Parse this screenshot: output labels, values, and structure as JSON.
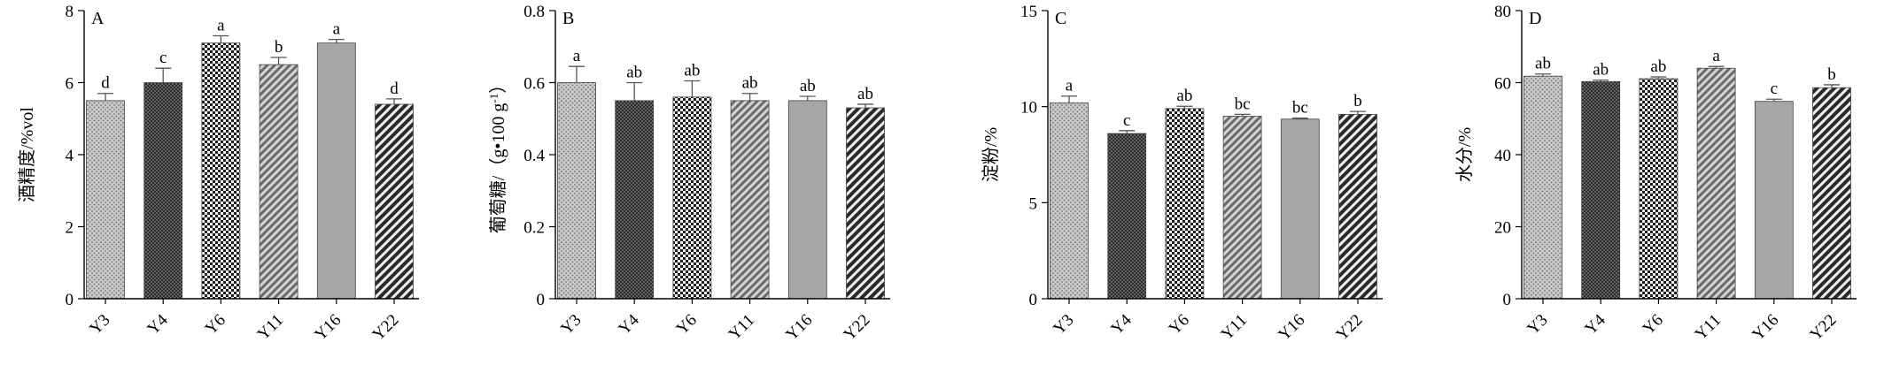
{
  "chart_data": [
    {
      "type": "bar",
      "panel": "A",
      "ylabel": "酒精度/%vol",
      "ylim": [
        0,
        8
      ],
      "yticks": [
        0,
        2,
        4,
        6,
        8
      ],
      "categories": [
        "Y3",
        "Y4",
        "Y6",
        "Y11",
        "Y16",
        "Y22"
      ],
      "values": [
        5.5,
        6.0,
        7.1,
        6.5,
        7.1,
        5.4
      ],
      "errors": [
        0.2,
        0.4,
        0.2,
        0.2,
        0.1,
        0.15
      ],
      "letters": [
        "d",
        "c",
        "a",
        "b",
        "a",
        "d"
      ]
    },
    {
      "type": "bar",
      "panel": "B",
      "ylabel": "葡萄糖/（g•100 g",
      "ylabel_sup": "-1",
      "ylabel_suffix": "）",
      "ylim": [
        0,
        0.8
      ],
      "yticks": [
        "0",
        "0.2",
        "0.4",
        "0.6",
        "0.8"
      ],
      "categories": [
        "Y3",
        "Y4",
        "Y6",
        "Y11",
        "Y16",
        "Y22"
      ],
      "values": [
        0.6,
        0.55,
        0.56,
        0.55,
        0.55,
        0.53
      ],
      "errors": [
        0.045,
        0.05,
        0.045,
        0.02,
        0.012,
        0.01
      ],
      "letters": [
        "a",
        "ab",
        "ab",
        "ab",
        "ab",
        "ab"
      ]
    },
    {
      "type": "bar",
      "panel": "C",
      "ylabel": "淀粉/%",
      "ylim": [
        0,
        15
      ],
      "yticks": [
        0,
        5,
        10,
        15
      ],
      "categories": [
        "Y3",
        "Y4",
        "Y6",
        "Y11",
        "Y16",
        "Y22"
      ],
      "values": [
        10.2,
        8.6,
        9.9,
        9.5,
        9.35,
        9.6
      ],
      "errors": [
        0.35,
        0.15,
        0.12,
        0.1,
        0.05,
        0.15
      ],
      "letters": [
        "a",
        "c",
        "ab",
        "bc",
        "bc",
        "b"
      ]
    },
    {
      "type": "bar",
      "panel": "D",
      "ylabel": "水分/%",
      "ylim": [
        0,
        80
      ],
      "yticks": [
        0,
        20,
        40,
        60,
        80
      ],
      "categories": [
        "Y3",
        "Y4",
        "Y6",
        "Y11",
        "Y16",
        "Y22"
      ],
      "values": [
        61.8,
        60.3,
        61.1,
        64.0,
        54.8,
        58.6
      ],
      "errors": [
        0.6,
        0.4,
        0.5,
        0.5,
        0.6,
        0.8
      ],
      "letters": [
        "ab",
        "ab",
        "ab",
        "a",
        "c",
        "b"
      ]
    }
  ],
  "bar_patterns": [
    "pat-dots-light",
    "pat-dots-dark",
    "pat-checker",
    "pat-hatch-light",
    "solid-gray",
    "pat-hatch-dark"
  ],
  "colors": {
    "axis": "#000000",
    "solid_bar": "#a6a6a6",
    "bar_outline": "#444444",
    "error_bar": "#555555"
  }
}
